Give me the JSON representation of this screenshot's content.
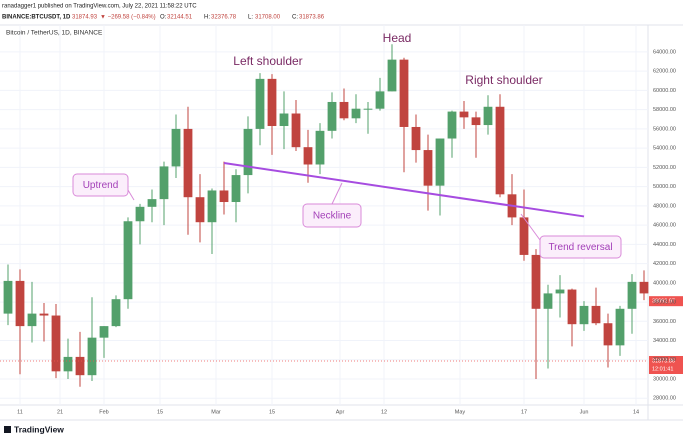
{
  "header": {
    "published": "ranadagger1 published on TradingView.com, July 22, 2021 11:58:22 UTC",
    "symbol": "BINANCE:BTCUSDT, 1D",
    "price": "31874.93",
    "change": "▼ −269.58 (−0.84%)",
    "ohlc": [
      {
        "label": "O:",
        "value": "32144.51"
      },
      {
        "label": "H:",
        "value": "32376.78"
      },
      {
        "label": "L:",
        "value": "31708.00"
      },
      {
        "label": "C:",
        "value": "31873.86"
      }
    ]
  },
  "footer": {
    "brand": "TradingView"
  },
  "chart_data": {
    "type": "candlestick",
    "title": "Bitcoin / TetherUS, 1D, BINANCE",
    "up_color": "#53a06b",
    "down_color": "#c0443f",
    "x": [
      "Jan 7",
      "Jan 10",
      "Jan 13",
      "Jan 16",
      "Jan 19",
      "Jan 22",
      "Jan 25",
      "Jan 28",
      "Jan 31",
      "Feb 3",
      "Feb 6",
      "Feb 9",
      "Feb 12",
      "Feb 15",
      "Feb 18",
      "Feb 21",
      "Feb 24",
      "Feb 27",
      "Mar 2",
      "Mar 5",
      "Mar 8",
      "Mar 11",
      "Mar 14",
      "Mar 17",
      "Mar 20",
      "Mar 23",
      "Mar 26",
      "Mar 29",
      "Apr 1",
      "Apr 4",
      "Apr 7",
      "Apr 10",
      "Apr 13",
      "Apr 16",
      "Apr 19",
      "Apr 22",
      "Apr 25",
      "Apr 28",
      "May 1",
      "May 4",
      "May 7",
      "May 10",
      "May 13",
      "May 16",
      "May 19",
      "May 22",
      "May 25",
      "May 28",
      "May 31",
      "Jun 3",
      "Jun 6",
      "Jun 9",
      "Jun 12",
      "Jun 15"
    ],
    "open": [
      36800,
      40200,
      35500,
      36800,
      36600,
      30800,
      32300,
      30400,
      34300,
      35500,
      38300,
      46400,
      47900,
      48700,
      52100,
      56000,
      48900,
      46300,
      49600,
      48400,
      51200,
      56000,
      61200,
      56300,
      57600,
      54100,
      52300,
      55800,
      58800,
      57100,
      58100,
      58100,
      59900,
      63200,
      56200,
      53800,
      50100,
      55000,
      57800,
      57200,
      56400,
      58300,
      49200,
      46800,
      42900,
      37300,
      38900,
      39300,
      35700,
      37600,
      35800,
      33500,
      37300,
      40100
    ],
    "high": [
      41900,
      41400,
      40100,
      37900,
      37800,
      34200,
      34900,
      38500,
      35500,
      38700,
      46800,
      48200,
      49700,
      52600,
      57500,
      58300,
      51300,
      49800,
      52600,
      51800,
      57300,
      61800,
      61700,
      59900,
      59000,
      55900,
      56600,
      59800,
      60200,
      59600,
      58800,
      61300,
      64800,
      63400,
      57500,
      55400,
      55000,
      57900,
      58900,
      57800,
      59500,
      59600,
      51300,
      49700,
      43500,
      39800,
      40800,
      39400,
      38100,
      39500,
      36800,
      37600,
      40900,
      41300
    ],
    "low": [
      35600,
      30500,
      33800,
      33900,
      30100,
      30000,
      29200,
      29800,
      32200,
      35400,
      37300,
      44000,
      46300,
      46000,
      50900,
      45000,
      44200,
      43000,
      47100,
      46300,
      49300,
      54300,
      53300,
      53900,
      53700,
      50400,
      51300,
      55000,
      56900,
      56600,
      55500,
      57900,
      59900,
      51500,
      52500,
      47500,
      47000,
      53000,
      56000,
      53000,
      55400,
      48900,
      46000,
      42300,
      30000,
      31100,
      36400,
      33400,
      35000,
      35600,
      31200,
      32400,
      34700,
      38200
    ],
    "close": [
      40200,
      35500,
      36800,
      36600,
      30800,
      32300,
      30400,
      34300,
      35500,
      38300,
      46400,
      47900,
      48700,
      52100,
      56000,
      48900,
      46300,
      49600,
      48400,
      51200,
      56000,
      61200,
      56300,
      57600,
      54100,
      52300,
      55800,
      58800,
      57100,
      58100,
      58100,
      59900,
      63200,
      56200,
      53800,
      50100,
      55000,
      57800,
      57200,
      56400,
      58300,
      49200,
      46800,
      42900,
      37300,
      38900,
      39300,
      35700,
      37600,
      35800,
      33500,
      37300,
      40100,
      38900
    ],
    "xlim": [
      "Jan 6",
      "Jun 17"
    ],
    "xticks": [
      {
        "value": "Jan 11",
        "label": "11"
      },
      {
        "value": "Jan 21",
        "label": "21"
      },
      {
        "value": "Feb 1",
        "label": "Feb"
      },
      {
        "value": "Feb 15",
        "label": "15"
      },
      {
        "value": "Mar 1",
        "label": "Mar"
      },
      {
        "value": "Mar 15",
        "label": "15"
      },
      {
        "value": "Apr 1",
        "label": "Apr"
      },
      {
        "value": "Apr 12",
        "label": "12"
      },
      {
        "value": "May 1",
        "label": "May"
      },
      {
        "value": "May 17",
        "label": "17"
      },
      {
        "value": "Jun 1",
        "label": "Jun"
      },
      {
        "value": "Jun 14",
        "label": "14"
      }
    ],
    "ylim": [
      27300,
      66800
    ],
    "yticks": [
      {
        "value": 28000,
        "label": "28000.00"
      },
      {
        "value": 30000,
        "label": "30000.00"
      },
      {
        "value": 32000,
        "label": "32000.00"
      },
      {
        "value": 34000,
        "label": "34000.00"
      },
      {
        "value": 36000,
        "label": "36000.00"
      },
      {
        "value": 38000,
        "label": "38000.00"
      },
      {
        "value": 40000,
        "label": "40000.00"
      },
      {
        "value": 42000,
        "label": "42000.00"
      },
      {
        "value": 44000,
        "label": "44000.00"
      },
      {
        "value": 46000,
        "label": "46000.00"
      },
      {
        "value": 48000,
        "label": "48000.00"
      },
      {
        "value": 50000,
        "label": "50000.00"
      },
      {
        "value": 52000,
        "label": "52000.00"
      },
      {
        "value": 54000,
        "label": "54000.00"
      },
      {
        "value": 56000,
        "label": "56000.00"
      },
      {
        "value": 58000,
        "label": "58000.00"
      },
      {
        "value": 60000,
        "label": "60000.00"
      },
      {
        "value": 62000,
        "label": "62000.00"
      },
      {
        "value": 64000,
        "label": "64000.00"
      }
    ],
    "grid": true,
    "marker_price": 38092.97,
    "last_price": {
      "value": 31873.86,
      "countdown": "12:01:41"
    },
    "neckline": {
      "x": [
        "Mar 3",
        "Jun 1"
      ],
      "y": [
        52450,
        46900
      ],
      "color": "#a64ce0"
    },
    "labels": {
      "head": "Head",
      "left_shoulder": "Left shoulder",
      "right_shoulder": "Right shoulder"
    },
    "callouts": {
      "uptrend": "Uptrend",
      "neckline": "Neckline",
      "trend_reversal": "Trend reversal"
    }
  }
}
